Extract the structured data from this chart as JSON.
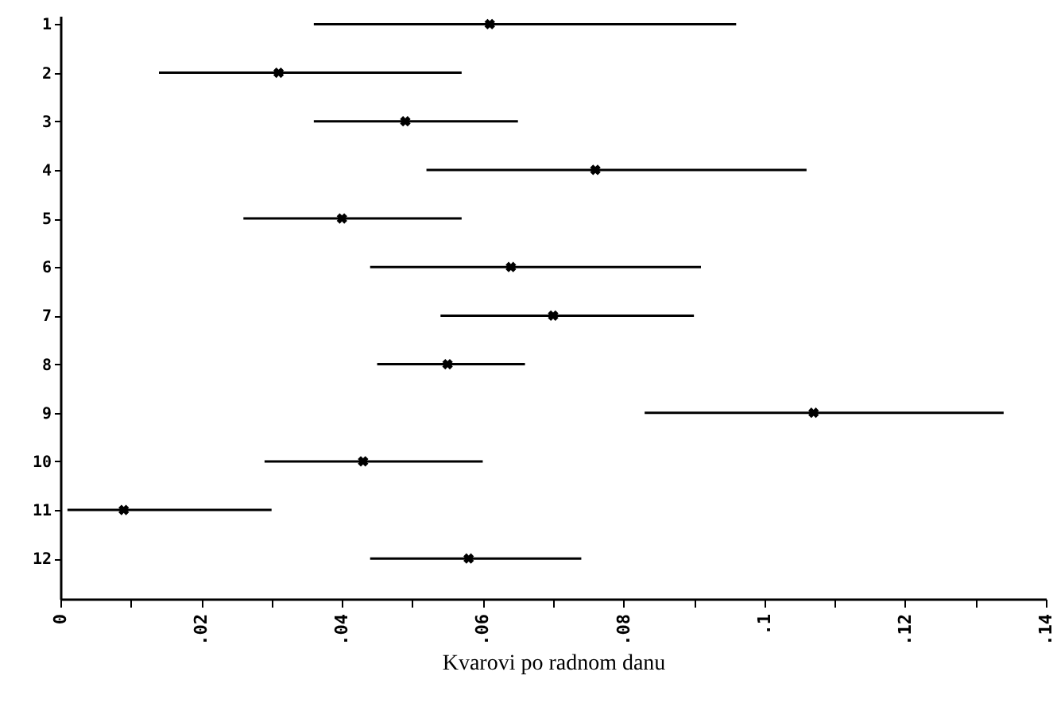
{
  "chart_data": {
    "type": "scatter",
    "orientation": "horizontal",
    "xlabel": "Kvarovi po radnom danu",
    "marker": "cross",
    "color": "#000000",
    "categories": [
      "1",
      "2",
      "3",
      "4",
      "5",
      "6",
      "7",
      "8",
      "9",
      "10",
      "11",
      "12"
    ],
    "values": [
      0.061,
      0.031,
      0.049,
      0.076,
      0.04,
      0.064,
      0.07,
      0.055,
      0.107,
      0.043,
      0.009,
      0.058
    ],
    "errors": [
      [
        0.036,
        0.096
      ],
      [
        0.014,
        0.057
      ],
      [
        0.036,
        0.065
      ],
      [
        0.052,
        0.106
      ],
      [
        0.026,
        0.057
      ],
      [
        0.044,
        0.091
      ],
      [
        0.054,
        0.09
      ],
      [
        0.045,
        0.066
      ],
      [
        0.083,
        0.134
      ],
      [
        0.029,
        0.06
      ],
      [
        0.001,
        0.03
      ],
      [
        0.044,
        0.074
      ]
    ],
    "xlim": [
      0,
      0.14
    ],
    "xticks": [
      {
        "value": 0,
        "label": "0"
      },
      {
        "value": 0.01,
        "label": null
      },
      {
        "value": 0.02,
        "label": ".02"
      },
      {
        "value": 0.03,
        "label": null
      },
      {
        "value": 0.04,
        "label": ".04"
      },
      {
        "value": 0.05,
        "label": null
      },
      {
        "value": 0.06,
        "label": ".06"
      },
      {
        "value": 0.07,
        "label": null
      },
      {
        "value": 0.08,
        "label": ".08"
      },
      {
        "value": 0.09,
        "label": null
      },
      {
        "value": 0.1,
        "label": ".1"
      },
      {
        "value": 0.11,
        "label": null
      },
      {
        "value": 0.12,
        "label": ".12"
      },
      {
        "value": 0.13,
        "label": null
      },
      {
        "value": 0.14,
        "label": ".14"
      }
    ]
  }
}
